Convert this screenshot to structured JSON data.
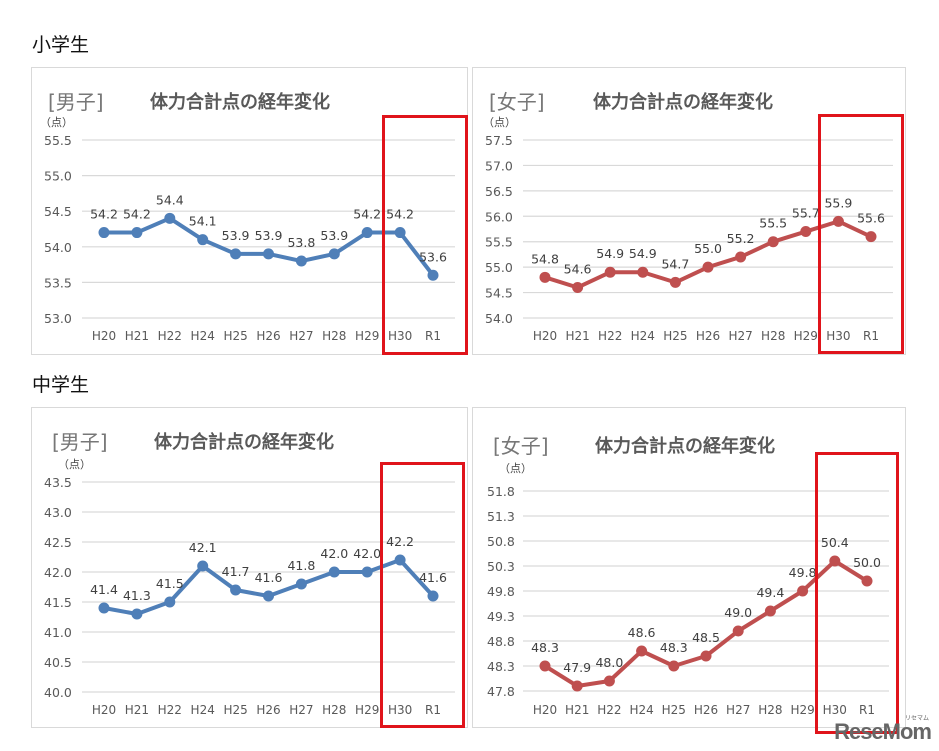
{
  "sections": {
    "elementary": {
      "title": "小学生"
    },
    "junior_high": {
      "title": "中学生"
    }
  },
  "watermark": {
    "text": "ReseMom",
    "subtext": "リセマム"
  },
  "colors": {
    "boys_line": "#4f7fb8",
    "girls_line": "#bf4f4f",
    "highlight": "#e0141b",
    "grid": "#d9d9d9"
  },
  "charts": [
    {
      "id": "elem-boys",
      "gender_label": "[男子]",
      "title": "体力合計点の経年変化",
      "unit": "（点）",
      "highlighted_categories": [
        "H30",
        "R1"
      ]
    },
    {
      "id": "elem-girls",
      "gender_label": "[女子]",
      "title": "体力合計点の経年変化",
      "unit": "（点）",
      "highlighted_categories": [
        "H30",
        "R1"
      ]
    },
    {
      "id": "jh-boys",
      "gender_label": "[男子]",
      "title": "体力合計点の経年変化",
      "unit": "（点）",
      "highlighted_categories": [
        "H30",
        "R1"
      ]
    },
    {
      "id": "jh-girls",
      "gender_label": "[女子]",
      "title": "体力合計点の経年変化",
      "unit": "（点）",
      "highlighted_categories": [
        "H30",
        "R1"
      ]
    }
  ],
  "chart_data": [
    {
      "type": "line",
      "title": "体力合計点の経年変化",
      "subtitle": "小学生 [男子]",
      "xlabel": "",
      "ylabel": "（点）",
      "categories": [
        "H20",
        "H21",
        "H22",
        "H24",
        "H25",
        "H26",
        "H27",
        "H28",
        "H29",
        "H30",
        "R1"
      ],
      "series": [
        {
          "name": "男子",
          "color": "#4f7fb8",
          "values": [
            54.2,
            54.2,
            54.4,
            54.1,
            53.9,
            53.9,
            53.8,
            53.9,
            54.2,
            54.2,
            53.6
          ]
        }
      ],
      "yticks": [
        "53.0",
        "53.5",
        "54.0",
        "54.5",
        "55.0",
        "55.5"
      ],
      "ylim": [
        53.0,
        55.5
      ],
      "grid": true,
      "legend": "none",
      "annotations": [
        "H30–R1 highlighted with red box"
      ]
    },
    {
      "type": "line",
      "title": "体力合計点の経年変化",
      "subtitle": "小学生 [女子]",
      "xlabel": "",
      "ylabel": "（点）",
      "categories": [
        "H20",
        "H21",
        "H22",
        "H24",
        "H25",
        "H26",
        "H27",
        "H28",
        "H29",
        "H30",
        "R1"
      ],
      "series": [
        {
          "name": "女子",
          "color": "#bf4f4f",
          "values": [
            54.8,
            54.6,
            54.9,
            54.9,
            54.7,
            55.0,
            55.2,
            55.5,
            55.7,
            55.9,
            55.6
          ]
        }
      ],
      "yticks": [
        "54.0",
        "54.5",
        "55.0",
        "55.5",
        "56.0",
        "56.5",
        "57.0",
        "57.5"
      ],
      "ylim": [
        54.0,
        57.5
      ],
      "grid": true,
      "legend": "none",
      "annotations": [
        "H30–R1 highlighted with red box"
      ]
    },
    {
      "type": "line",
      "title": "体力合計点の経年変化",
      "subtitle": "中学生 [男子]",
      "xlabel": "",
      "ylabel": "（点）",
      "categories": [
        "H20",
        "H21",
        "H22",
        "H24",
        "H25",
        "H26",
        "H27",
        "H28",
        "H29",
        "H30",
        "R1"
      ],
      "series": [
        {
          "name": "男子",
          "color": "#4f7fb8",
          "values": [
            41.4,
            41.3,
            41.5,
            42.1,
            41.7,
            41.6,
            41.8,
            42.0,
            42.0,
            42.2,
            41.6
          ]
        }
      ],
      "yticks": [
        "40.0",
        "40.5",
        "41.0",
        "41.5",
        "42.0",
        "42.5",
        "43.0",
        "43.5"
      ],
      "ylim": [
        40.0,
        43.5
      ],
      "grid": true,
      "legend": "none",
      "annotations": [
        "H30–R1 highlighted with red box"
      ]
    },
    {
      "type": "line",
      "title": "体力合計点の経年変化",
      "subtitle": "中学生 [女子]",
      "xlabel": "",
      "ylabel": "（点）",
      "categories": [
        "H20",
        "H21",
        "H22",
        "H24",
        "H25",
        "H26",
        "H27",
        "H28",
        "H29",
        "H30",
        "R1"
      ],
      "series": [
        {
          "name": "女子",
          "color": "#bf4f4f",
          "values": [
            48.3,
            47.9,
            48.0,
            48.6,
            48.3,
            48.5,
            49.0,
            49.4,
            49.8,
            50.4,
            50.0
          ]
        }
      ],
      "yticks": [
        "47.8",
        "48.3",
        "48.8",
        "49.3",
        "49.8",
        "50.3",
        "50.8",
        "51.3",
        "51.8"
      ],
      "ylim": [
        47.8,
        51.8
      ],
      "grid": true,
      "legend": "none",
      "annotations": [
        "H30–R1 highlighted with red box"
      ]
    }
  ]
}
